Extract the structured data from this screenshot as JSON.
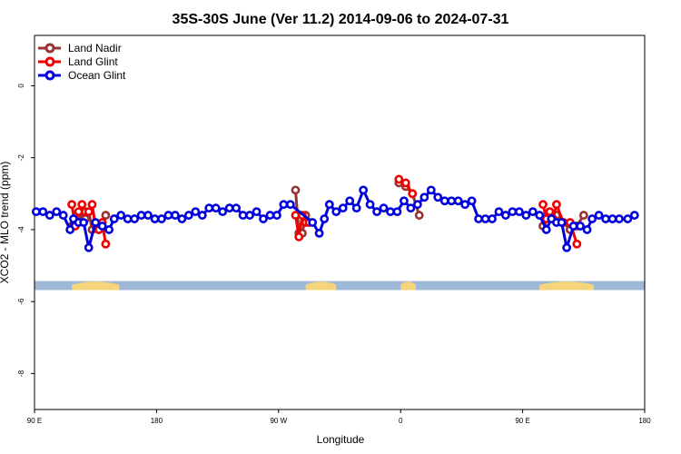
{
  "chart_data": {
    "type": "line",
    "title": "35S-30S June (Ver 11.2)   2014-09-06 to 2024-07-31",
    "xlabel": "Longitude",
    "ylabel": "XCO2 - MLO trend (ppm)",
    "xlim": [
      90,
      450
    ],
    "ylim": [
      -9.0,
      1.4
    ],
    "x_ticks": [
      {
        "value": 90,
        "label": "90 E"
      },
      {
        "value": 162,
        "label": "180"
      },
      {
        "value": 234,
        "label": "90 W"
      },
      {
        "value": 306,
        "label": "0"
      },
      {
        "value": 378,
        "label": "90 E"
      },
      {
        "value": 450,
        "label": "180"
      }
    ],
    "y_ticks": [
      {
        "value": 0,
        "label": "0"
      },
      {
        "value": -2,
        "label": "-2"
      },
      {
        "value": -4,
        "label": "-4"
      },
      {
        "value": -6,
        "label": "-6"
      },
      {
        "value": -8,
        "label": "-8"
      }
    ],
    "grid": false,
    "legend_position": "top-left",
    "series": [
      {
        "name": "Land Nadir",
        "color": "#993333",
        "points": [
          [
            112,
            -3.9
          ],
          [
            114,
            -3.8
          ],
          [
            116,
            -3.8
          ],
          [
            118,
            -3.5
          ],
          [
            120,
            -3.7
          ],
          [
            122,
            -3.5
          ],
          [
            124,
            -4.0
          ],
          [
            126,
            -3.9
          ],
          [
            128,
            -4.0
          ],
          [
            130,
            -3.9
          ],
          [
            132,
            -3.6
          ],
          [
            244,
            -2.9
          ],
          [
            246,
            -4.1
          ],
          [
            248,
            -4.1
          ],
          [
            250,
            -3.6
          ],
          [
            252,
            -3.8
          ],
          [
            305,
            -2.7
          ],
          [
            309,
            -2.8
          ],
          [
            313,
            -3.0
          ],
          [
            317,
            -3.6
          ],
          [
            390,
            -3.9
          ],
          [
            394,
            -3.5
          ],
          [
            398,
            -3.6
          ],
          [
            402,
            -3.8
          ],
          [
            406,
            -4.0
          ],
          [
            410,
            -3.9
          ],
          [
            414,
            -3.6
          ]
        ]
      },
      {
        "name": "Land Glint",
        "color": "#ee0000",
        "points": [
          [
            112,
            -3.3
          ],
          [
            114,
            -3.9
          ],
          [
            116,
            -3.5
          ],
          [
            118,
            -3.3
          ],
          [
            120,
            -3.5
          ],
          [
            122,
            -3.5
          ],
          [
            124,
            -3.3
          ],
          [
            126,
            -3.9
          ],
          [
            128,
            -4.0
          ],
          [
            130,
            -3.8
          ],
          [
            132,
            -4.4
          ],
          [
            244,
            -3.6
          ],
          [
            246,
            -4.2
          ],
          [
            248,
            -3.6
          ],
          [
            250,
            -3.8
          ],
          [
            252,
            -3.8
          ],
          [
            305,
            -2.6
          ],
          [
            309,
            -2.7
          ],
          [
            313,
            -3.0
          ],
          [
            390,
            -3.3
          ],
          [
            392,
            -3.7
          ],
          [
            394,
            -3.5
          ],
          [
            396,
            -3.7
          ],
          [
            398,
            -3.3
          ],
          [
            402,
            -3.8
          ],
          [
            406,
            -3.8
          ],
          [
            410,
            -4.4
          ]
        ]
      },
      {
        "name": "Ocean Glint",
        "color": "#0000dd",
        "points": [
          [
            91,
            -3.5
          ],
          [
            95,
            -3.5
          ],
          [
            99,
            -3.6
          ],
          [
            103,
            -3.5
          ],
          [
            107,
            -3.6
          ],
          [
            111,
            -4.0
          ],
          [
            113,
            -3.7
          ],
          [
            116,
            -3.8
          ],
          [
            119,
            -3.8
          ],
          [
            122,
            -4.5
          ],
          [
            126,
            -3.8
          ],
          [
            130,
            -3.9
          ],
          [
            134,
            -4.0
          ],
          [
            137,
            -3.7
          ],
          [
            141,
            -3.6
          ],
          [
            145,
            -3.7
          ],
          [
            149,
            -3.7
          ],
          [
            153,
            -3.6
          ],
          [
            157,
            -3.6
          ],
          [
            161,
            -3.7
          ],
          [
            165,
            -3.7
          ],
          [
            169,
            -3.6
          ],
          [
            173,
            -3.6
          ],
          [
            177,
            -3.7
          ],
          [
            181,
            -3.6
          ],
          [
            185,
            -3.5
          ],
          [
            189,
            -3.6
          ],
          [
            193,
            -3.4
          ],
          [
            197,
            -3.4
          ],
          [
            201,
            -3.5
          ],
          [
            205,
            -3.4
          ],
          [
            209,
            -3.4
          ],
          [
            213,
            -3.6
          ],
          [
            217,
            -3.6
          ],
          [
            221,
            -3.5
          ],
          [
            225,
            -3.7
          ],
          [
            229,
            -3.6
          ],
          [
            233,
            -3.6
          ],
          [
            237,
            -3.3
          ],
          [
            241,
            -3.3
          ],
          [
            254,
            -3.8
          ],
          [
            258,
            -4.1
          ],
          [
            261,
            -3.7
          ],
          [
            264,
            -3.3
          ],
          [
            268,
            -3.5
          ],
          [
            272,
            -3.4
          ],
          [
            276,
            -3.2
          ],
          [
            280,
            -3.4
          ],
          [
            284,
            -2.9
          ],
          [
            288,
            -3.3
          ],
          [
            292,
            -3.5
          ],
          [
            296,
            -3.4
          ],
          [
            300,
            -3.5
          ],
          [
            304,
            -3.5
          ],
          [
            308,
            -3.2
          ],
          [
            312,
            -3.4
          ],
          [
            316,
            -3.3
          ],
          [
            320,
            -3.1
          ],
          [
            324,
            -2.9
          ],
          [
            328,
            -3.1
          ],
          [
            332,
            -3.2
          ],
          [
            336,
            -3.2
          ],
          [
            340,
            -3.2
          ],
          [
            344,
            -3.3
          ],
          [
            348,
            -3.2
          ],
          [
            352,
            -3.7
          ],
          [
            356,
            -3.7
          ],
          [
            360,
            -3.7
          ],
          [
            364,
            -3.5
          ],
          [
            368,
            -3.6
          ],
          [
            372,
            -3.5
          ],
          [
            376,
            -3.5
          ],
          [
            380,
            -3.6
          ],
          [
            384,
            -3.5
          ],
          [
            388,
            -3.6
          ],
          [
            392,
            -4.0
          ],
          [
            395,
            -3.7
          ],
          [
            398,
            -3.8
          ],
          [
            401,
            -3.8
          ],
          [
            404,
            -4.5
          ],
          [
            408,
            -3.9
          ],
          [
            412,
            -3.9
          ],
          [
            416,
            -4.0
          ],
          [
            419,
            -3.7
          ],
          [
            423,
            -3.6
          ],
          [
            427,
            -3.7
          ],
          [
            431,
            -3.7
          ],
          [
            435,
            -3.7
          ],
          [
            440,
            -3.7
          ],
          [
            444,
            -3.6
          ]
        ]
      }
    ],
    "land_ocean_strip": {
      "ocean_color": "#a0b8d8",
      "land_color": "#f6d57a",
      "land_ranges": [
        [
          112,
          140
        ],
        [
          250,
          268
        ],
        [
          306,
          315
        ],
        [
          388,
          420
        ]
      ]
    }
  }
}
